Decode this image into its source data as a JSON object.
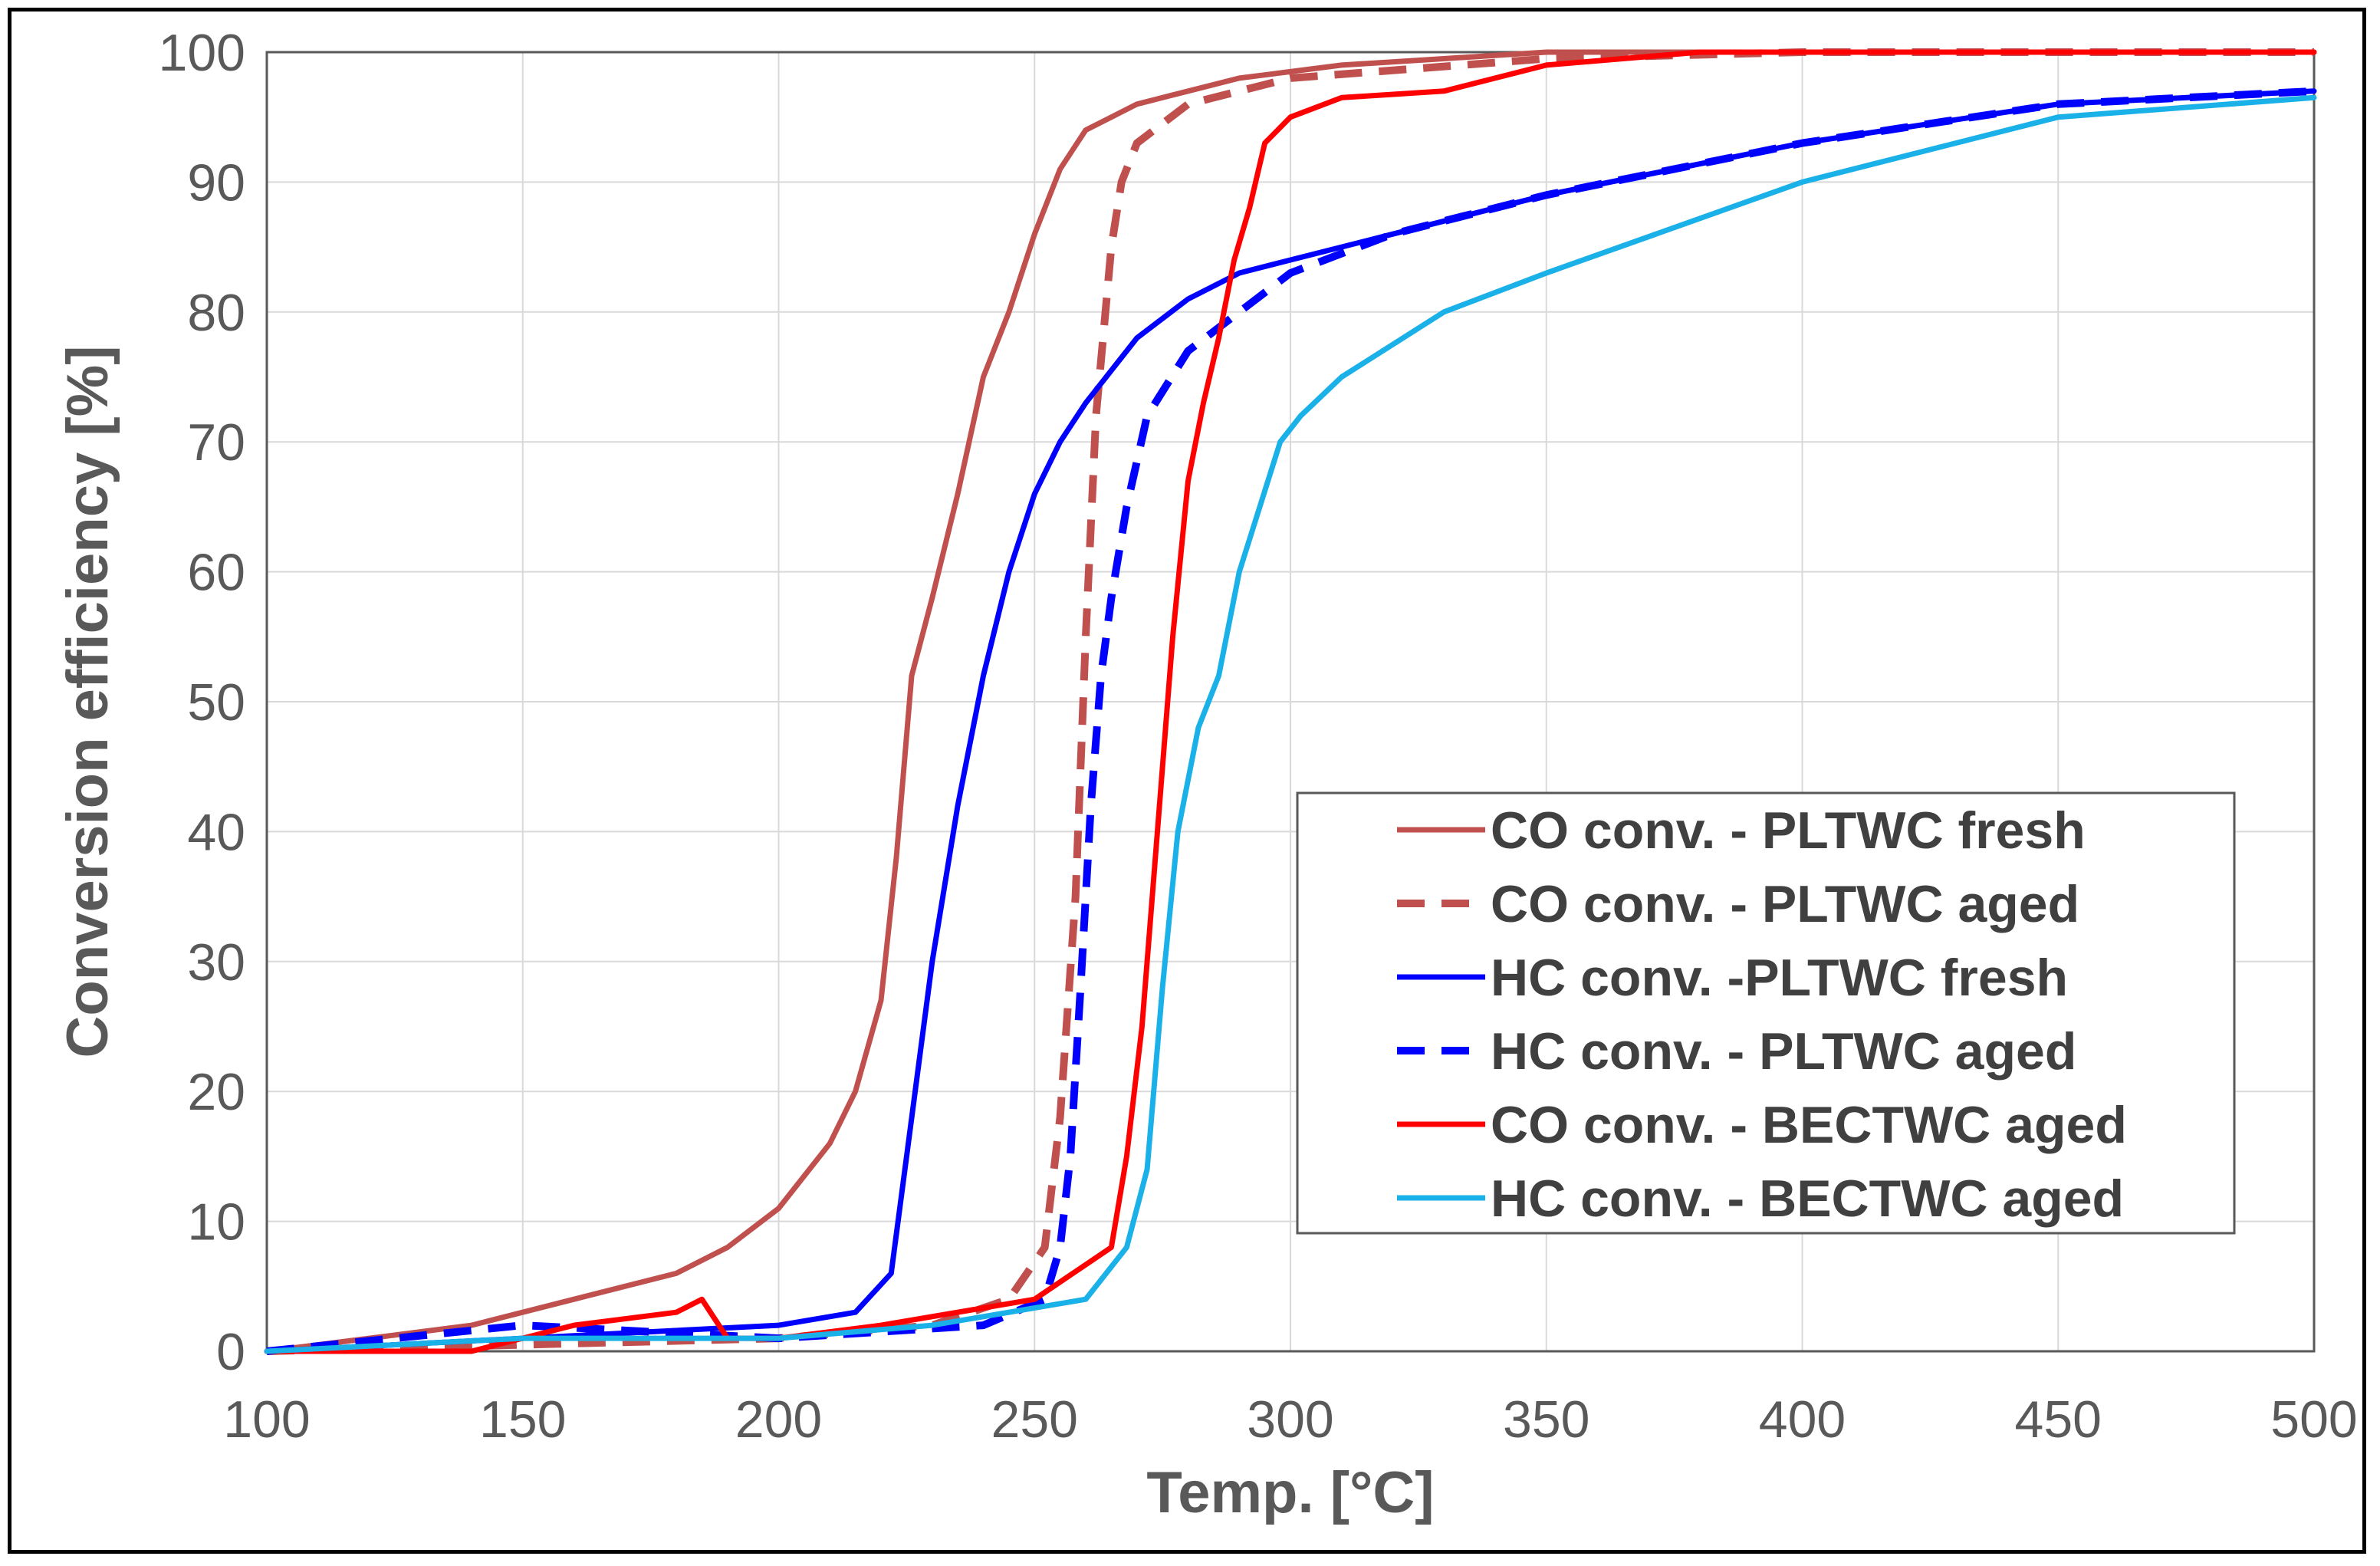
{
  "chart_data": {
    "type": "line",
    "title": "",
    "xlabel": "Temp. [°C]",
    "ylabel": "Conversion efficiency [%]",
    "xlim": [
      100,
      500
    ],
    "ylim": [
      0,
      100
    ],
    "xticks": [
      "100",
      "150",
      "200",
      "250",
      "300",
      "350",
      "400",
      "450",
      "500"
    ],
    "yticks": [
      "0",
      "10",
      "20",
      "30",
      "40",
      "50",
      "60",
      "70",
      "80",
      "90",
      "100"
    ],
    "grid": true,
    "legend_position": "center-right",
    "series": [
      {
        "name": "CO conv. - PLTWC fresh",
        "color": "#C0504D",
        "dash": false,
        "x": [
          100,
          120,
          140,
          160,
          180,
          190,
          200,
          210,
          215,
          220,
          223,
          226,
          230,
          235,
          240,
          245,
          250,
          255,
          260,
          265,
          270,
          280,
          290,
          300,
          310,
          330,
          350,
          400,
          450,
          500
        ],
        "y": [
          0,
          1,
          2,
          4,
          6,
          8,
          11,
          16,
          20,
          27,
          38,
          52,
          58,
          66,
          75,
          80,
          86,
          91,
          94,
          95,
          96,
          97,
          98,
          98.5,
          99,
          99.5,
          100,
          100,
          100,
          100
        ]
      },
      {
        "name": "CO conv. - PLTWC aged",
        "color": "#C0504D",
        "dash": true,
        "x": [
          100,
          150,
          200,
          230,
          245,
          252,
          255,
          258,
          260,
          262,
          265,
          267,
          270,
          280,
          290,
          300,
          350,
          400,
          450,
          500
        ],
        "y": [
          0,
          0.5,
          1,
          2,
          4,
          8,
          18,
          35,
          55,
          72,
          85,
          90,
          93,
          96,
          97,
          98,
          99.5,
          100,
          100,
          100
        ]
      },
      {
        "name": "HC conv. -PLTWC fresh",
        "color": "#0000FF",
        "dash": false,
        "x": [
          100,
          150,
          200,
          215,
          222,
          225,
          230,
          235,
          240,
          245,
          250,
          255,
          260,
          270,
          280,
          290,
          300,
          320,
          350,
          400,
          450,
          500
        ],
        "y": [
          0,
          1,
          2,
          3,
          6,
          15,
          30,
          42,
          52,
          60,
          66,
          70,
          73,
          78,
          81,
          83,
          84,
          86,
          89,
          93,
          96,
          97
        ]
      },
      {
        "name": "HC conv. - PLTWC aged",
        "color": "#0000FF",
        "dash": true,
        "x": [
          100,
          150,
          200,
          240,
          252,
          255,
          257,
          259,
          261,
          263,
          265,
          268,
          272,
          280,
          290,
          300,
          320,
          350,
          400,
          450,
          500
        ],
        "y": [
          0,
          2,
          1,
          2,
          4,
          8,
          15,
          28,
          42,
          52,
          58,
          65,
          72,
          77,
          80,
          83,
          86,
          89,
          93,
          96,
          97
        ]
      },
      {
        "name": "CO conv. - BECTWC aged",
        "color": "#FF0000",
        "dash": false,
        "x": [
          100,
          140,
          160,
          180,
          185,
          190,
          200,
          220,
          250,
          265,
          268,
          271,
          274,
          277,
          280,
          283,
          286,
          289,
          292,
          295,
          300,
          310,
          330,
          350,
          380,
          400,
          450,
          500
        ],
        "y": [
          0,
          0,
          2,
          3,
          4,
          1,
          1,
          2,
          4,
          8,
          15,
          25,
          40,
          55,
          67,
          73,
          78,
          84,
          88,
          93,
          95,
          96.5,
          97,
          99,
          100,
          100,
          100,
          100
        ]
      },
      {
        "name": "HC conv. - BECTWC aged",
        "color": "#1AB0E8",
        "dash": false,
        "x": [
          100,
          150,
          200,
          230,
          260,
          268,
          272,
          275,
          278,
          282,
          286,
          290,
          294,
          298,
          302,
          310,
          330,
          350,
          400,
          450,
          500
        ],
        "y": [
          0,
          1,
          1,
          2,
          4,
          8,
          14,
          28,
          40,
          48,
          52,
          60,
          65,
          70,
          72,
          75,
          80,
          83,
          90,
          95,
          96.5
        ]
      }
    ]
  }
}
